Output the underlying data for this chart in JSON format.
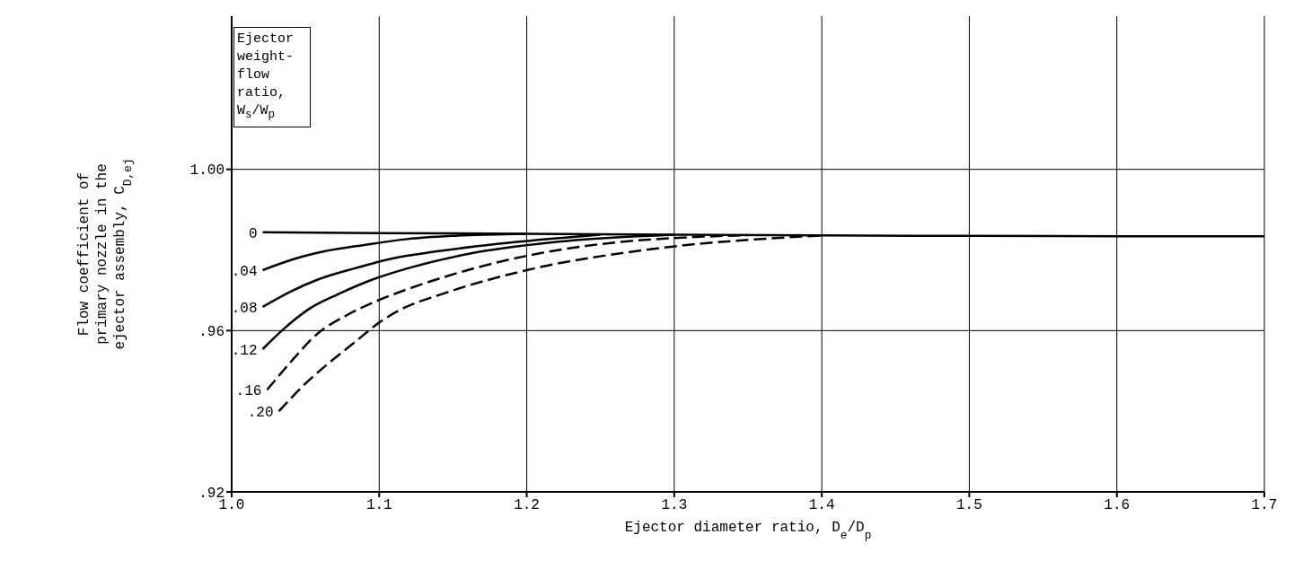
{
  "chart_data": {
    "type": "line",
    "xlabel": "Ejector diameter ratio, D$_{e}$/D$_{p}$",
    "ylabel": "Flow coefficient of\nprimary nozzle in the\nejector assembly, C$_{D,ej}$",
    "legend_title": "Ejector weight-flow ratio, W$_{s}$/W$_{p}$",
    "grid": true,
    "marker": "none",
    "xlim": [
      1.0,
      1.7
    ],
    "xticks": [
      {
        "value": 1.0,
        "label": "1.0"
      },
      1.1,
      1.2,
      1.3,
      1.4,
      1.5,
      1.6,
      1.7
    ],
    "ylim": [
      0.92,
      1.038
    ],
    "yticks": [
      {
        "value": 0.92,
        "label": ".92"
      },
      {
        "value": 0.96,
        "label": ".96"
      },
      {
        "value": 1.0,
        "label": "1.00"
      }
    ],
    "series": [
      {
        "name": "0",
        "color": "#000000",
        "line_style": "solid",
        "x": [
          1.021,
          1.1,
          1.2,
          1.3,
          1.4,
          1.5,
          1.6,
          1.7
        ],
        "values": [
          0.9844,
          0.9842,
          0.984,
          0.9838,
          0.9836,
          0.9835,
          0.9834,
          0.9834
        ]
      },
      {
        "name": ".04",
        "color": "#000000",
        "line_style": "solid",
        "x": [
          1.021,
          1.04,
          1.062,
          1.091,
          1.119,
          1.15,
          1.2
        ],
        "values": [
          0.975,
          0.9775,
          0.9796,
          0.9813,
          0.9827,
          0.9835,
          0.984
        ]
      },
      {
        "name": ".08",
        "color": "#000000",
        "line_style": "solid",
        "x": [
          1.021,
          1.04,
          1.058,
          1.083,
          1.109,
          1.138,
          1.18,
          1.25
        ],
        "values": [
          0.9659,
          0.9697,
          0.9726,
          0.9754,
          0.9779,
          0.9796,
          0.9815,
          0.9838
        ]
      },
      {
        "name": ".12",
        "color": "#000000",
        "line_style": "solid",
        "x": [
          1.021,
          1.034,
          1.053,
          1.072,
          1.095,
          1.119,
          1.16,
          1.22,
          1.3
        ],
        "values": [
          0.9554,
          0.96,
          0.9655,
          0.969,
          0.9726,
          0.9754,
          0.979,
          0.982,
          0.9838
        ]
      },
      {
        "name": ".16",
        "color": "#000000",
        "line_style": "dashed",
        "x": [
          1.024,
          1.04,
          1.058,
          1.078,
          1.1,
          1.121,
          1.17,
          1.24,
          1.35
        ],
        "values": [
          0.9453,
          0.9522,
          0.9592,
          0.9638,
          0.9676,
          0.9705,
          0.976,
          0.981,
          0.9837
        ]
      },
      {
        "name": ".20",
        "color": "#000000",
        "line_style": "dashed",
        "x": [
          1.032,
          1.049,
          1.066,
          1.083,
          1.1,
          1.115,
          1.142,
          1.2,
          1.28,
          1.4
        ],
        "values": [
          0.94,
          0.9465,
          0.952,
          0.957,
          0.962,
          0.9653,
          0.969,
          0.975,
          0.98,
          0.9836
        ]
      }
    ]
  }
}
